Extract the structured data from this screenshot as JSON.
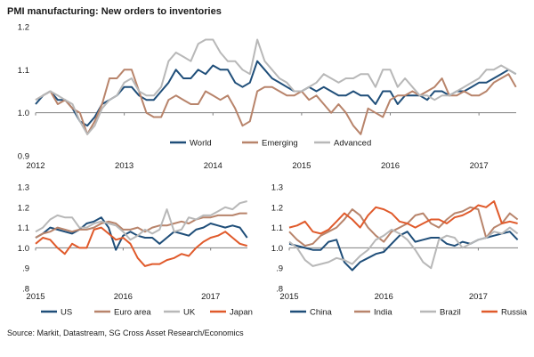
{
  "title": "PMI manufacturing: New orders to inventories",
  "source": "Source: Markit, Datastream, SG Cross Asset Research/Economics",
  "chart_data": [
    {
      "type": "line",
      "panel": "top",
      "x_start": 2012.0,
      "x_step_months": 1,
      "xlim": [
        2012.0,
        2017.42
      ],
      "ylim": [
        0.9,
        1.2
      ],
      "yticks": [
        {
          "v": 0.9,
          "label": "0.9"
        },
        {
          "v": 1.0,
          "label": "1.0"
        },
        {
          "v": 1.1,
          "label": "1.1"
        },
        {
          "v": 1.2,
          "label": "1.2"
        }
      ],
      "xticks": [
        {
          "v": 2012,
          "label": "2012"
        },
        {
          "v": 2013,
          "label": "2013"
        },
        {
          "v": 2014,
          "label": "2014"
        },
        {
          "v": 2015,
          "label": "2015"
        },
        {
          "v": 2016,
          "label": "2016"
        },
        {
          "v": 2017,
          "label": "2017"
        }
      ],
      "legend_position": "bottom",
      "series": [
        {
          "name": "World",
          "color": "#1f4e79",
          "values": [
            1.02,
            1.04,
            1.05,
            1.03,
            1.03,
            1.01,
            0.98,
            0.97,
            0.99,
            1.02,
            1.03,
            1.04,
            1.06,
            1.06,
            1.04,
            1.03,
            1.03,
            1.05,
            1.07,
            1.1,
            1.08,
            1.08,
            1.1,
            1.09,
            1.11,
            1.1,
            1.1,
            1.07,
            1.06,
            1.07,
            1.12,
            1.1,
            1.08,
            1.07,
            1.06,
            1.05,
            1.05,
            1.06,
            1.05,
            1.06,
            1.05,
            1.04,
            1.04,
            1.05,
            1.04,
            1.04,
            1.02,
            1.05,
            1.05,
            1.02,
            1.04,
            1.04,
            1.04,
            1.03,
            1.05,
            1.05,
            1.04,
            1.05,
            1.05,
            1.06,
            1.07,
            1.07,
            1.08,
            1.09,
            1.1,
            1.09
          ]
        },
        {
          "name": "Emerging",
          "color": "#b8846b",
          "values": [
            1.03,
            1.04,
            1.05,
            1.02,
            1.03,
            1.01,
            1.0,
            0.95,
            0.98,
            1.02,
            1.08,
            1.08,
            1.1,
            1.1,
            1.05,
            1.0,
            0.99,
            0.99,
            1.03,
            1.04,
            1.03,
            1.02,
            1.02,
            1.05,
            1.04,
            1.03,
            1.04,
            1.01,
            0.97,
            0.98,
            1.05,
            1.06,
            1.06,
            1.05,
            1.04,
            1.04,
            1.05,
            1.03,
            1.04,
            1.02,
            1.0,
            1.02,
            1.0,
            0.97,
            0.95,
            1.01,
            1.0,
            0.99,
            1.03,
            1.04,
            1.04,
            1.05,
            1.04,
            1.05,
            1.06,
            1.08,
            1.04,
            1.04,
            1.05,
            1.04,
            1.04,
            1.05,
            1.07,
            1.08,
            1.09,
            1.06
          ]
        },
        {
          "name": "Advanced",
          "color": "#b8b8b8",
          "values": [
            1.03,
            1.04,
            1.05,
            1.04,
            1.03,
            1.02,
            0.98,
            0.95,
            0.97,
            1.01,
            1.03,
            1.04,
            1.07,
            1.08,
            1.05,
            1.04,
            1.04,
            1.06,
            1.12,
            1.14,
            1.13,
            1.12,
            1.16,
            1.17,
            1.17,
            1.14,
            1.12,
            1.12,
            1.1,
            1.09,
            1.17,
            1.12,
            1.1,
            1.08,
            1.07,
            1.05,
            1.05,
            1.06,
            1.07,
            1.09,
            1.08,
            1.07,
            1.08,
            1.08,
            1.09,
            1.09,
            1.06,
            1.1,
            1.1,
            1.06,
            1.08,
            1.06,
            1.04,
            1.04,
            1.03,
            1.04,
            1.04,
            1.05,
            1.06,
            1.07,
            1.08,
            1.1,
            1.1,
            1.11,
            1.1,
            1.09
          ]
        }
      ]
    },
    {
      "type": "line",
      "panel": "bottom-left",
      "x_start": 2015.0,
      "x_step_months": 1,
      "xlim": [
        2015.0,
        2017.42
      ],
      "ylim": [
        0.8,
        1.3
      ],
      "yticks": [
        {
          "v": 0.8,
          "label": ".8"
        },
        {
          "v": 0.9,
          "label": ".9"
        },
        {
          "v": 1.0,
          "label": "1.0"
        },
        {
          "v": 1.1,
          "label": "1.1"
        },
        {
          "v": 1.2,
          "label": "1.2"
        },
        {
          "v": 1.3,
          "label": "1.3"
        }
      ],
      "xticks": [
        {
          "v": 2015,
          "label": "2015"
        },
        {
          "v": 2016,
          "label": "2016"
        },
        {
          "v": 2017,
          "label": "2017"
        }
      ],
      "legend_position": "bottom",
      "series": [
        {
          "name": "US",
          "color": "#1f4e79",
          "values": [
            1.05,
            1.07,
            1.1,
            1.09,
            1.08,
            1.07,
            1.09,
            1.12,
            1.13,
            1.15,
            1.1,
            0.99,
            1.06,
            1.08,
            1.06,
            1.05,
            1.05,
            1.02,
            1.05,
            1.08,
            1.07,
            1.06,
            1.09,
            1.1,
            1.12,
            1.11,
            1.1,
            1.11,
            1.1,
            1.05
          ]
        },
        {
          "name": "Euro area",
          "color": "#b8846b",
          "values": [
            1.05,
            1.07,
            1.08,
            1.1,
            1.09,
            1.08,
            1.09,
            1.09,
            1.1,
            1.12,
            1.13,
            1.12,
            1.09,
            1.09,
            1.1,
            1.08,
            1.1,
            1.11,
            1.11,
            1.12,
            1.13,
            1.12,
            1.14,
            1.15,
            1.15,
            1.16,
            1.16,
            1.16,
            1.17,
            1.17
          ]
        },
        {
          "name": "UK",
          "color": "#b8b8b8",
          "values": [
            1.08,
            1.1,
            1.14,
            1.16,
            1.15,
            1.15,
            1.1,
            1.1,
            1.12,
            1.13,
            1.12,
            1.11,
            1.08,
            1.04,
            1.06,
            1.09,
            1.07,
            1.09,
            1.19,
            1.08,
            1.09,
            1.15,
            1.14,
            1.16,
            1.16,
            1.18,
            1.2,
            1.19,
            1.22,
            1.23
          ]
        },
        {
          "name": "Japan",
          "color": "#e05a2b",
          "values": [
            1.02,
            1.05,
            1.04,
            1.0,
            0.97,
            1.02,
            1.0,
            1.0,
            1.09,
            1.1,
            1.07,
            1.04,
            1.05,
            1.02,
            0.95,
            0.91,
            0.92,
            0.92,
            0.94,
            0.95,
            0.97,
            0.96,
            1.0,
            1.03,
            1.05,
            1.06,
            1.08,
            1.05,
            1.02,
            1.01
          ]
        }
      ]
    },
    {
      "type": "line",
      "panel": "bottom-right",
      "x_start": 2015.0,
      "x_step_months": 1,
      "xlim": [
        2015.0,
        2017.42
      ],
      "ylim": [
        0.8,
        1.3
      ],
      "yticks": [
        {
          "v": 0.8,
          "label": ".8"
        },
        {
          "v": 0.9,
          "label": ".9"
        },
        {
          "v": 1.0,
          "label": "1.0"
        },
        {
          "v": 1.1,
          "label": "1.1"
        },
        {
          "v": 1.2,
          "label": "1.2"
        },
        {
          "v": 1.3,
          "label": "1.3"
        }
      ],
      "xticks": [
        {
          "v": 2015,
          "label": "2015"
        },
        {
          "v": 2016,
          "label": "2016"
        },
        {
          "v": 2017,
          "label": "2017"
        }
      ],
      "legend_position": "bottom",
      "series": [
        {
          "name": "China",
          "color": "#1f4e79",
          "values": [
            1.02,
            1.01,
            1.0,
            0.99,
            0.99,
            1.03,
            1.04,
            0.93,
            0.89,
            0.93,
            0.95,
            0.97,
            0.98,
            1.02,
            1.06,
            1.08,
            1.03,
            1.04,
            1.05,
            1.05,
            1.02,
            1.01,
            1.03,
            1.02,
            1.04,
            1.05,
            1.06,
            1.07,
            1.08,
            1.04
          ]
        },
        {
          "name": "India",
          "color": "#b8846b",
          "values": [
            1.08,
            1.04,
            1.01,
            1.02,
            1.06,
            1.08,
            1.1,
            1.14,
            1.19,
            1.16,
            1.1,
            1.06,
            1.03,
            1.08,
            1.1,
            1.12,
            1.16,
            1.17,
            1.12,
            1.1,
            1.14,
            1.17,
            1.18,
            1.2,
            1.19,
            1.05,
            1.1,
            1.12,
            1.17,
            1.14
          ]
        },
        {
          "name": "Brazil",
          "color": "#b8b8b8",
          "values": [
            1.03,
            1.0,
            0.94,
            0.91,
            0.92,
            0.93,
            0.95,
            0.94,
            0.92,
            0.96,
            0.99,
            1.04,
            1.06,
            1.09,
            1.07,
            1.04,
            0.99,
            0.93,
            0.9,
            1.04,
            1.06,
            1.05,
            1.0,
            1.02,
            1.04,
            1.05,
            1.08,
            1.07,
            1.1,
            1.07
          ]
        },
        {
          "name": "Russia",
          "color": "#e05a2b",
          "values": [
            1.1,
            1.11,
            1.13,
            1.08,
            1.07,
            1.09,
            1.13,
            1.17,
            1.14,
            1.1,
            1.16,
            1.2,
            1.19,
            1.17,
            1.13,
            1.12,
            1.1,
            1.12,
            1.14,
            1.14,
            1.12,
            1.15,
            1.16,
            1.18,
            1.21,
            1.2,
            1.23,
            1.12,
            1.13,
            1.12
          ]
        }
      ]
    }
  ]
}
